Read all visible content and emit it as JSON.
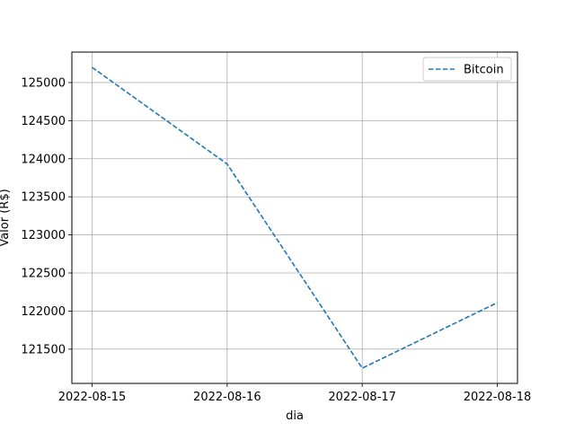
{
  "chart_data": {
    "type": "line",
    "title": "",
    "xlabel": "dia",
    "ylabel": "Valor (R$)",
    "categories": [
      "2022-08-15",
      "2022-08-16",
      "2022-08-17",
      "2022-08-18"
    ],
    "series": [
      {
        "name": "Bitcoin",
        "values": [
          125200,
          123930,
          121250,
          122110
        ],
        "color": "#1f77b4",
        "linestyle": "dashed"
      }
    ],
    "yticks": [
      121500,
      122000,
      122500,
      123000,
      123500,
      124000,
      124500,
      125000
    ],
    "ylim": [
      121050,
      125400
    ],
    "grid": true,
    "legend_position": "top-right"
  }
}
